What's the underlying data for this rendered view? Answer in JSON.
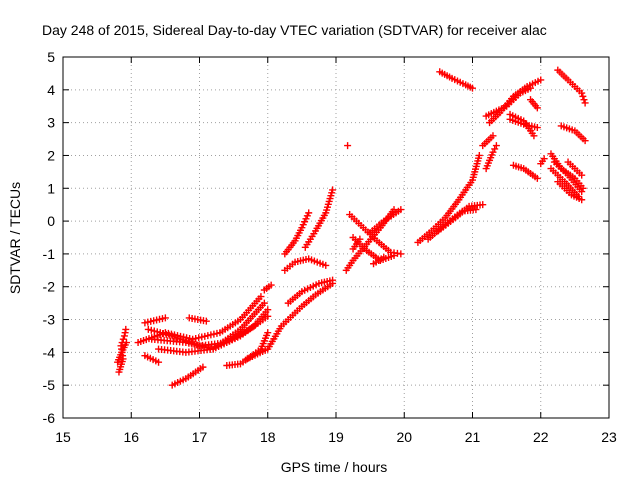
{
  "chart_data": {
    "type": "scatter",
    "title": "Day 248 of 2015, Sidereal Day-to-day VTEC variation (SDTVAR) for receiver alac",
    "xlabel": "GPS time / hours",
    "ylabel": "SDTVAR / TECUs",
    "xlim": [
      15,
      23
    ],
    "ylim": [
      -6,
      5
    ],
    "xticks": [
      "15",
      "16",
      "17",
      "18",
      "19",
      "20",
      "21",
      "22",
      "23"
    ],
    "yticks": [
      "-6",
      "-5",
      "-4",
      "-3",
      "-2",
      "-1",
      "0",
      "1",
      "2",
      "3",
      "4",
      "5"
    ],
    "grid": true,
    "marker": "+",
    "marker_color": "#ff0000",
    "series": [
      {
        "name": "t1",
        "segments": [
          [
            [
              15.82,
              -4.6
            ],
            [
              15.88,
              -4.2
            ],
            [
              15.85,
              -3.8
            ],
            [
              15.9,
              -3.5
            ],
            [
              15.92,
              -3.3
            ]
          ],
          [
            [
              15.8,
              -4.3
            ],
            [
              15.86,
              -4.0
            ],
            [
              15.93,
              -3.7
            ]
          ]
        ]
      },
      {
        "name": "t2",
        "segments": [
          [
            [
              16.25,
              -3.3
            ],
            [
              16.6,
              -3.5
            ],
            [
              17.0,
              -3.8
            ],
            [
              17.4,
              -3.7
            ],
            [
              17.8,
              -3.2
            ],
            [
              18.0,
              -2.7
            ]
          ],
          [
            [
              16.3,
              -3.6
            ],
            [
              16.8,
              -3.7
            ],
            [
              17.2,
              -3.9
            ],
            [
              17.6,
              -3.5
            ],
            [
              18.0,
              -2.9
            ]
          ],
          [
            [
              16.4,
              -3.9
            ],
            [
              16.8,
              -4.0
            ],
            [
              17.2,
              -3.9
            ],
            [
              17.6,
              -3.3
            ],
            [
              17.95,
              -2.5
            ]
          ],
          [
            [
              16.1,
              -3.7
            ],
            [
              16.5,
              -3.4
            ],
            [
              16.9,
              -3.6
            ],
            [
              17.3,
              -3.4
            ],
            [
              17.6,
              -3.0
            ],
            [
              17.9,
              -2.3
            ]
          ],
          [
            [
              16.2,
              -3.1
            ],
            [
              16.5,
              -2.95
            ]
          ],
          [
            [
              16.85,
              -2.95
            ],
            [
              17.1,
              -3.05
            ]
          ],
          [
            [
              17.4,
              -4.4
            ],
            [
              17.6,
              -4.35
            ],
            [
              17.9,
              -3.9
            ],
            [
              18.0,
              -3.4
            ]
          ],
          [
            [
              16.2,
              -4.1
            ],
            [
              16.4,
              -4.3
            ]
          ]
        ]
      },
      {
        "name": "t3",
        "segments": [
          [
            [
              16.6,
              -5.0
            ],
            [
              16.8,
              -4.8
            ],
            [
              17.05,
              -4.45
            ]
          ]
        ]
      },
      {
        "name": "t4",
        "segments": [
          [
            [
              17.7,
              -4.2
            ],
            [
              18.0,
              -3.9
            ],
            [
              18.2,
              -3.2
            ],
            [
              18.5,
              -2.6
            ],
            [
              18.7,
              -2.25
            ],
            [
              18.95,
              -1.9
            ]
          ],
          [
            [
              17.95,
              -2.1
            ],
            [
              18.05,
              -1.95
            ]
          ],
          [
            [
              18.3,
              -2.5
            ],
            [
              18.5,
              -2.15
            ],
            [
              18.75,
              -1.9
            ],
            [
              18.95,
              -1.8
            ]
          ],
          [
            [
              18.25,
              -1.5
            ],
            [
              18.4,
              -1.25
            ],
            [
              18.6,
              -1.15
            ],
            [
              18.85,
              -1.35
            ]
          ],
          [
            [
              18.25,
              -1.0
            ],
            [
              18.4,
              -0.6
            ],
            [
              18.5,
              -0.2
            ],
            [
              18.6,
              0.25
            ]
          ],
          [
            [
              18.55,
              -0.8
            ],
            [
              18.7,
              -0.3
            ],
            [
              18.85,
              0.25
            ],
            [
              18.95,
              0.95
            ]
          ]
        ]
      },
      {
        "name": "t5",
        "segments": [
          [
            [
              19.15,
              -1.5
            ],
            [
              19.25,
              -1.2
            ],
            [
              19.45,
              -0.7
            ],
            [
              19.65,
              -0.2
            ],
            [
              19.85,
              0.35
            ]
          ],
          [
            [
              19.2,
              0.2
            ],
            [
              19.4,
              -0.2
            ],
            [
              19.6,
              -0.6
            ],
            [
              19.8,
              -0.95
            ],
            [
              19.95,
              -1.0
            ]
          ],
          [
            [
              19.25,
              -0.5
            ],
            [
              19.45,
              -0.9
            ],
            [
              19.65,
              -1.2
            ],
            [
              19.85,
              -1.05
            ]
          ],
          [
            [
              19.5,
              -0.35
            ],
            [
              19.7,
              0.0
            ],
            [
              19.95,
              0.35
            ]
          ],
          [
            [
              19.25,
              -0.85
            ],
            [
              19.35,
              -0.55
            ]
          ],
          [
            [
              19.55,
              -1.3
            ],
            [
              19.7,
              -1.1
            ]
          ]
        ]
      },
      {
        "name": "t6",
        "segments": [
          [
            [
              19.17,
              2.3
            ]
          ]
        ]
      },
      {
        "name": "t7",
        "segments": [
          [
            [
              20.2,
              -0.65
            ],
            [
              20.4,
              -0.3
            ],
            [
              20.6,
              0.1
            ],
            [
              20.8,
              0.65
            ],
            [
              21.0,
              1.25
            ],
            [
              21.1,
              2.0
            ]
          ],
          [
            [
              20.5,
              -0.3
            ],
            [
              20.75,
              0.1
            ],
            [
              20.95,
              0.45
            ],
            [
              21.15,
              0.5
            ]
          ],
          [
            [
              20.35,
              -0.55
            ],
            [
              20.6,
              -0.1
            ],
            [
              20.85,
              0.3
            ],
            [
              21.05,
              0.35
            ]
          ]
        ]
      },
      {
        "name": "t8",
        "segments": [
          [
            [
              20.52,
              4.55
            ],
            [
              20.7,
              4.35
            ],
            [
              20.9,
              4.15
            ],
            [
              21.0,
              4.05
            ]
          ]
        ]
      },
      {
        "name": "t9",
        "segments": [
          [
            [
              21.2,
              1.6
            ],
            [
              21.3,
              2.1
            ],
            [
              21.35,
              2.3
            ]
          ],
          [
            [
              21.25,
              3.0
            ],
            [
              21.4,
              3.3
            ],
            [
              21.6,
              3.8
            ],
            [
              21.8,
              4.1
            ],
            [
              22.0,
              4.3
            ]
          ],
          [
            [
              21.2,
              3.2
            ],
            [
              21.5,
              3.5
            ],
            [
              21.7,
              3.9
            ],
            [
              21.85,
              4.05
            ]
          ],
          [
            [
              21.15,
              2.3
            ],
            [
              21.3,
              2.6
            ]
          ],
          [
            [
              21.55,
              3.1
            ],
            [
              21.75,
              2.95
            ],
            [
              21.95,
              2.85
            ]
          ],
          [
            [
              21.6,
              1.7
            ],
            [
              21.75,
              1.6
            ],
            [
              21.95,
              1.3
            ]
          ],
          [
            [
              21.85,
              3.7
            ],
            [
              21.95,
              3.45
            ]
          ],
          [
            [
              21.55,
              3.25
            ],
            [
              21.75,
              3.05
            ],
            [
              21.9,
              2.6
            ]
          ],
          [
            [
              22.0,
              1.75
            ],
            [
              22.05,
              1.9
            ]
          ]
        ]
      },
      {
        "name": "t10",
        "segments": [
          [
            [
              22.25,
              4.6
            ],
            [
              22.4,
              4.3
            ],
            [
              22.6,
              3.9
            ],
            [
              22.65,
              3.6
            ]
          ],
          [
            [
              22.3,
              2.9
            ],
            [
              22.5,
              2.75
            ],
            [
              22.65,
              2.45
            ]
          ],
          [
            [
              22.2,
              1.8
            ],
            [
              22.4,
              1.4
            ],
            [
              22.6,
              0.9
            ]
          ],
          [
            [
              22.15,
              1.6
            ],
            [
              22.35,
              1.2
            ],
            [
              22.55,
              0.75
            ]
          ],
          [
            [
              22.25,
              1.2
            ],
            [
              22.45,
              0.8
            ],
            [
              22.6,
              0.65
            ]
          ],
          [
            [
              22.15,
              2.05
            ],
            [
              22.3,
              1.6
            ],
            [
              22.5,
              1.3
            ],
            [
              22.62,
              1.0
            ]
          ],
          [
            [
              22.4,
              1.8
            ],
            [
              22.6,
              1.4
            ]
          ]
        ]
      }
    ]
  }
}
